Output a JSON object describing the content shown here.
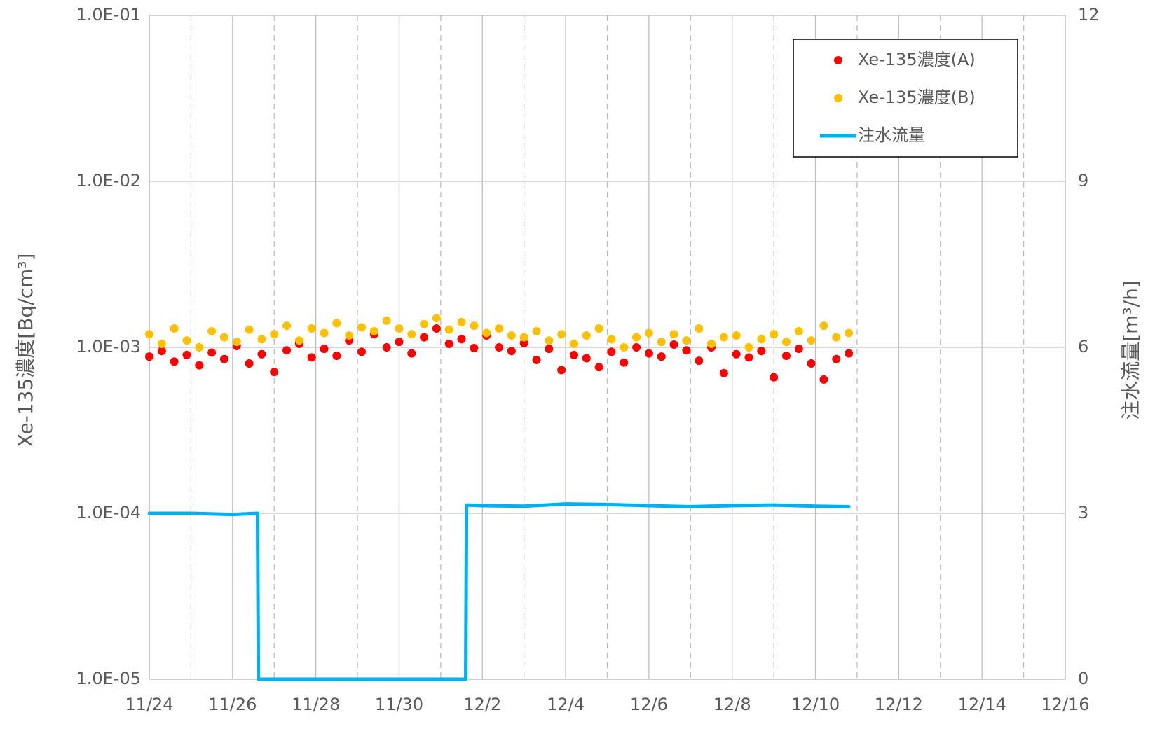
{
  "chart_data": {
    "type": "scatter",
    "ylabel": "Xe-135濃度[Bq/cm³]",
    "y2label": "注水流量[m³/h]",
    "log_y": true,
    "grid": true,
    "legend": "upper right",
    "xlim": [
      0,
      22
    ],
    "xticks": [
      {
        "value": 0,
        "label": "11/24"
      },
      {
        "value": 2,
        "label": "11/26"
      },
      {
        "value": 4,
        "label": "11/28"
      },
      {
        "value": 6,
        "label": "11/30"
      },
      {
        "value": 8,
        "label": "12/2"
      },
      {
        "value": 10,
        "label": "12/4"
      },
      {
        "value": 12,
        "label": "12/6"
      },
      {
        "value": 14,
        "label": "12/8"
      },
      {
        "value": 16,
        "label": "12/10"
      },
      {
        "value": 18,
        "label": "12/12"
      },
      {
        "value": 20,
        "label": "12/14"
      },
      {
        "value": 22,
        "label": "12/16"
      }
    ],
    "xminorticks": [
      1,
      3,
      5,
      7,
      9,
      11,
      13,
      15,
      17,
      19,
      21
    ],
    "ylim": [
      1e-05,
      0.1
    ],
    "yticks": [
      {
        "value": 1e-05,
        "label": "1.0E-05"
      },
      {
        "value": 0.0001,
        "label": "1.0E-04"
      },
      {
        "value": 0.001,
        "label": "1.0E-03"
      },
      {
        "value": 0.01,
        "label": "1.0E-02"
      },
      {
        "value": 0.1,
        "label": "1.0E-01"
      }
    ],
    "y2lim": [
      0,
      12
    ],
    "y2ticks": [
      0,
      3,
      6,
      9,
      12
    ],
    "x": [
      0,
      0.3,
      0.6,
      0.9,
      1.2,
      1.5,
      1.8,
      2.1,
      2.4,
      2.7,
      3.0,
      3.3,
      3.6,
      3.9,
      4.2,
      4.5,
      4.8,
      5.1,
      5.4,
      5.7,
      6.0,
      6.3,
      6.6,
      6.9,
      7.2,
      7.5,
      7.8,
      8.1,
      8.4,
      8.7,
      9.0,
      9.3,
      9.6,
      9.9,
      10.2,
      10.5,
      10.8,
      11.1,
      11.4,
      11.7,
      12.0,
      12.3,
      12.6,
      12.9,
      13.2,
      13.5,
      13.8,
      14.1,
      14.4,
      14.7,
      15.0,
      15.3,
      15.6,
      15.9,
      16.2,
      16.5,
      16.8
    ],
    "series": [
      {
        "name": "Xe-135濃度(A)",
        "color": "#ff0000",
        "values": [
          0.00088,
          0.00095,
          0.00082,
          0.0009,
          0.00078,
          0.00093,
          0.00085,
          0.00102,
          0.0008,
          0.00091,
          0.00071,
          0.00096,
          0.00105,
          0.00087,
          0.00098,
          0.00089,
          0.0011,
          0.00094,
          0.0012,
          0.001,
          0.00108,
          0.00092,
          0.00115,
          0.0013,
          0.00105,
          0.00112,
          0.00099,
          0.00118,
          0.001,
          0.00095,
          0.00106,
          0.00084,
          0.00098,
          0.00073,
          0.0009,
          0.00086,
          0.00076,
          0.00094,
          0.00081,
          0.001,
          0.00092,
          0.00088,
          0.00104,
          0.00096,
          0.00083,
          0.001,
          0.0007,
          0.00091,
          0.00087,
          0.00095,
          0.00066,
          0.00089,
          0.00098,
          0.0008,
          0.00064,
          0.00085,
          0.00092
        ]
      },
      {
        "name": "Xe-135濃度(B)",
        "color": "#ffc000",
        "values": [
          0.0012,
          0.00105,
          0.0013,
          0.0011,
          0.001,
          0.00125,
          0.00115,
          0.00108,
          0.00128,
          0.00112,
          0.0012,
          0.00135,
          0.0011,
          0.0013,
          0.00122,
          0.0014,
          0.00118,
          0.00132,
          0.00125,
          0.00145,
          0.0013,
          0.0012,
          0.00138,
          0.0015,
          0.00128,
          0.00142,
          0.00135,
          0.00122,
          0.0013,
          0.00118,
          0.00115,
          0.00125,
          0.0011,
          0.0012,
          0.00105,
          0.00118,
          0.0013,
          0.00112,
          0.001,
          0.00115,
          0.00122,
          0.00108,
          0.0012,
          0.0011,
          0.0013,
          0.00105,
          0.00115,
          0.00118,
          0.001,
          0.00112,
          0.0012,
          0.00108,
          0.00125,
          0.0011,
          0.00135,
          0.00115,
          0.00122
        ]
      },
      {
        "name": "注水流量",
        "type": "line",
        "axis": "y2",
        "color": "#00b0f0",
        "x": [
          0,
          1,
          2,
          2.6,
          2.62,
          7.6,
          7.62,
          8,
          9,
          10,
          11,
          12,
          13,
          14,
          15,
          16,
          16.8
        ],
        "values": [
          3.0,
          3.0,
          2.98,
          3.0,
          0,
          0,
          3.15,
          3.14,
          3.13,
          3.17,
          3.16,
          3.14,
          3.12,
          3.14,
          3.15,
          3.13,
          3.12
        ]
      }
    ]
  }
}
